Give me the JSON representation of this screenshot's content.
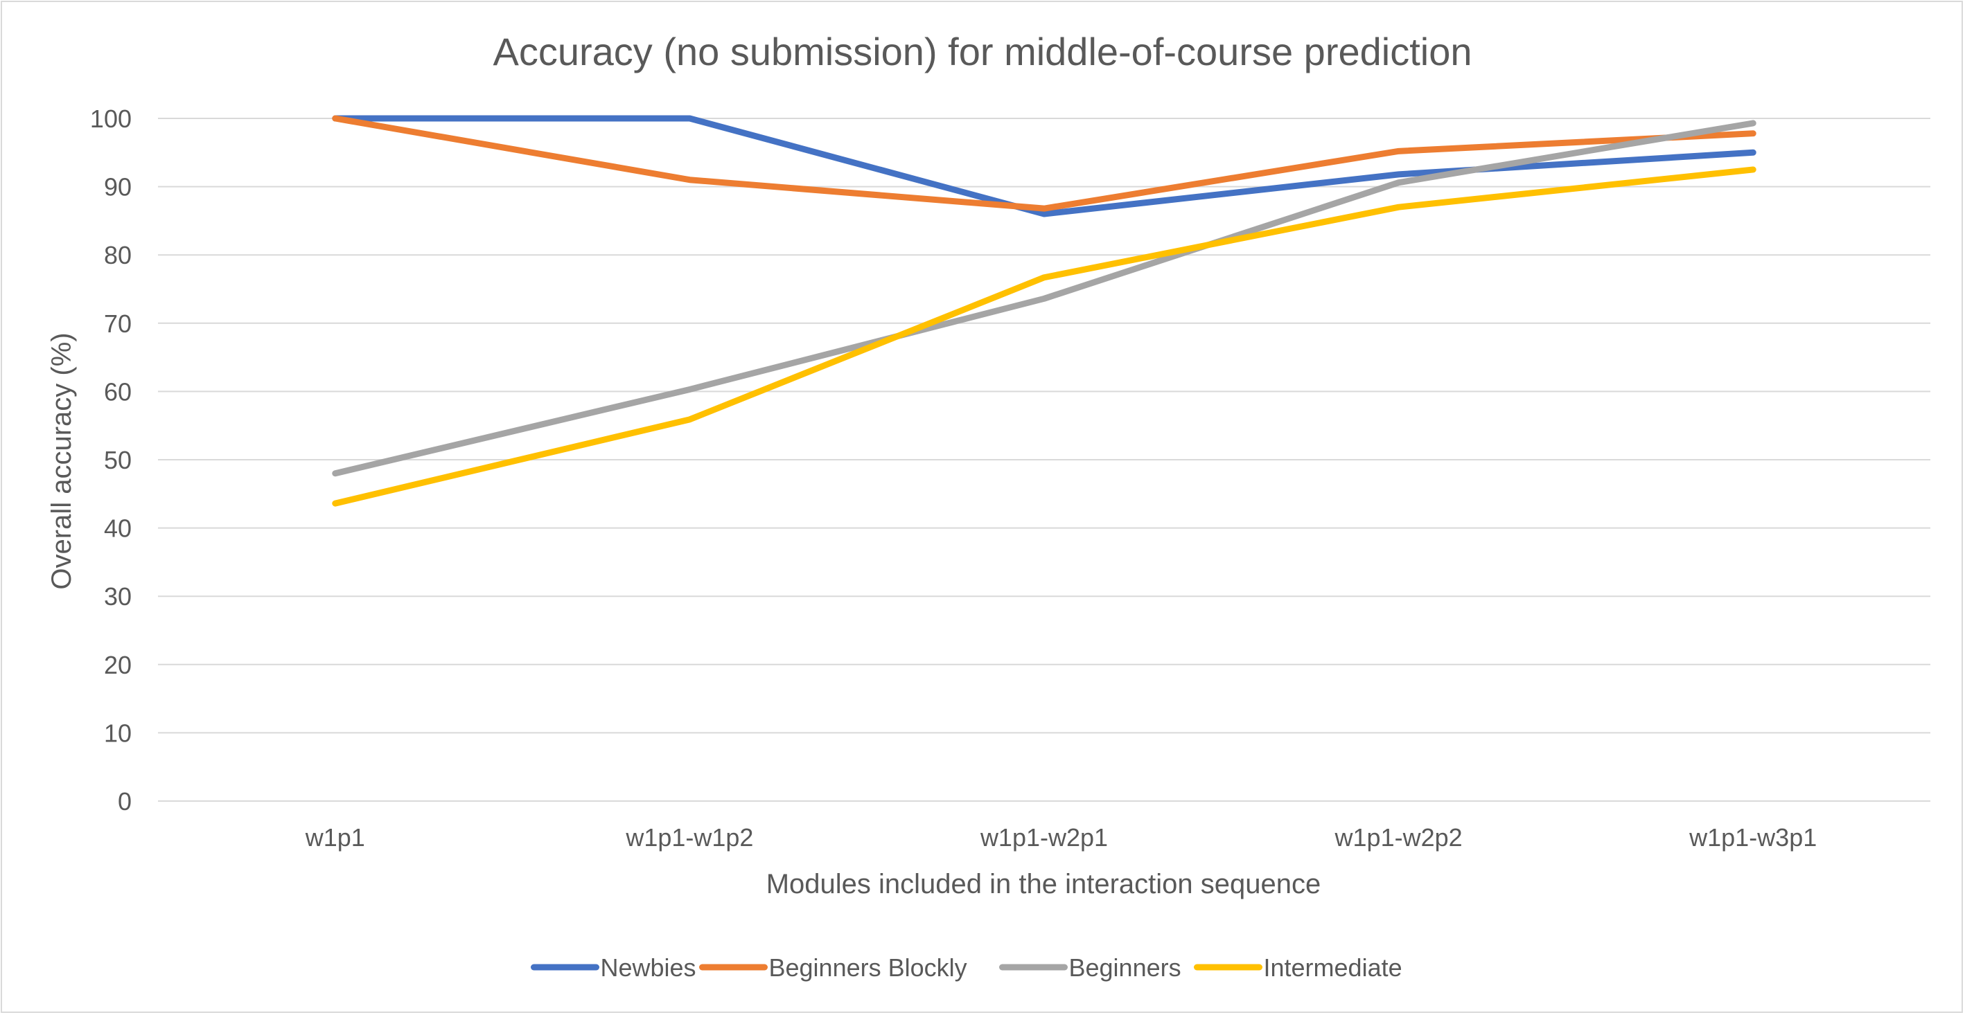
{
  "chart_data": {
    "type": "line",
    "title": "Accuracy (no submission) for middle-of-course prediction",
    "xlabel": "Modules included in the interaction sequence",
    "ylabel": "Overall accuracy (%)",
    "categories": [
      "w1p1",
      "w1p1-w1p2",
      "w1p1-w2p1",
      "w1p1-w2p2",
      "w1p1-w3p1"
    ],
    "ylim": [
      0,
      100
    ],
    "yticks": [
      "0",
      "10",
      "20",
      "30",
      "40",
      "50",
      "60",
      "70",
      "80",
      "90",
      "100"
    ],
    "grid": true,
    "legend_position": "bottom",
    "series": [
      {
        "name": "Newbies",
        "color": "#4472C4",
        "values": [
          100,
          100,
          86,
          91.8,
          95
        ]
      },
      {
        "name": "Beginners Blockly",
        "color": "#ED7D31",
        "values": [
          100,
          91,
          86.8,
          95.2,
          97.8
        ]
      },
      {
        "name": "Beginners",
        "color": "#A5A5A5",
        "values": [
          48,
          60.3,
          73.6,
          90.6,
          99.3
        ]
      },
      {
        "name": "Intermediate",
        "color": "#FFC000",
        "values": [
          43.6,
          55.9,
          76.7,
          87,
          92.5
        ]
      }
    ]
  }
}
